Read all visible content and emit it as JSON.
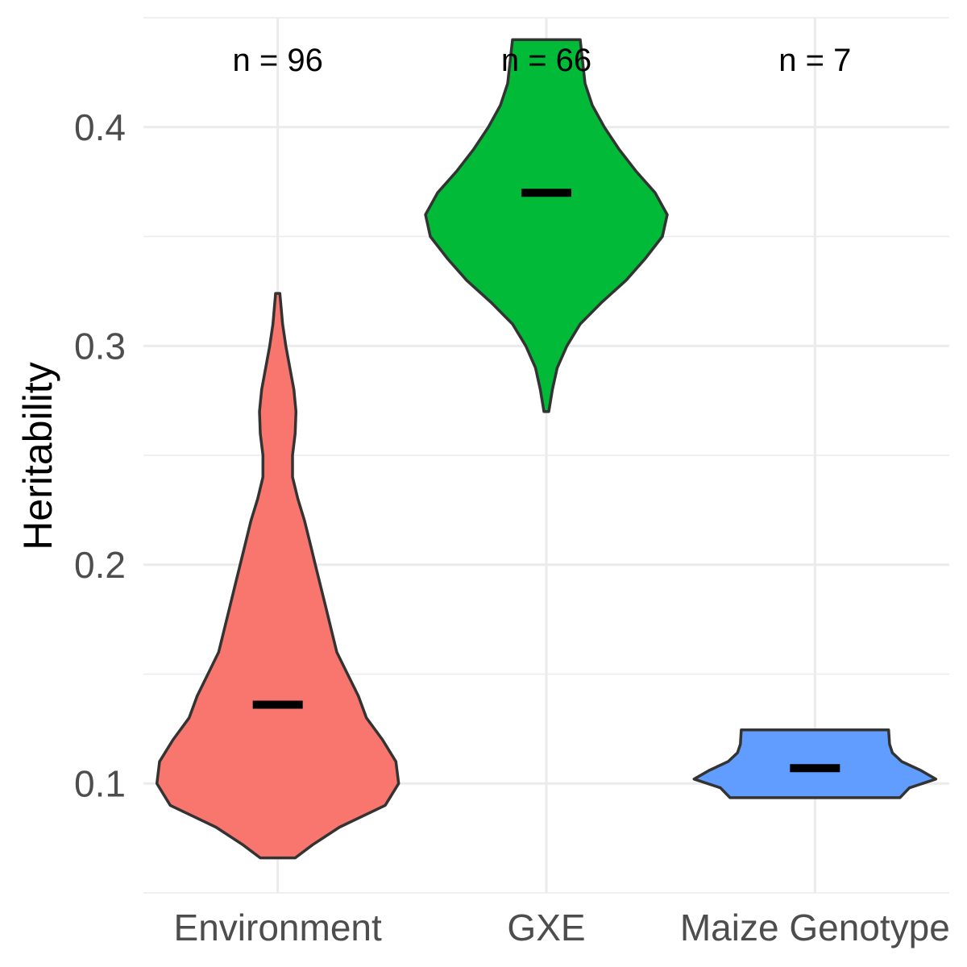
{
  "chart_data": {
    "type": "violin",
    "ylabel": "Heritability",
    "xlabel": "",
    "ylim": [
      0.05,
      0.45
    ],
    "yticks": [
      0.1,
      0.2,
      0.3,
      0.4
    ],
    "ytick_labels": [
      "0.1",
      "0.2",
      "0.3",
      "0.4"
    ],
    "grid": true,
    "categories": [
      "Environment",
      "GXE",
      "Maize Genotype"
    ],
    "series": [
      {
        "category": "Environment",
        "color": "#F8766D",
        "n_label": "n = 96",
        "median": 0.136,
        "density": [
          [
            0.066,
            0.065
          ],
          [
            0.072,
            0.13
          ],
          [
            0.08,
            0.23
          ],
          [
            0.09,
            0.4
          ],
          [
            0.1,
            0.45
          ],
          [
            0.11,
            0.44
          ],
          [
            0.12,
            0.39
          ],
          [
            0.13,
            0.33
          ],
          [
            0.14,
            0.3
          ],
          [
            0.15,
            0.26
          ],
          [
            0.16,
            0.22
          ],
          [
            0.17,
            0.2
          ],
          [
            0.18,
            0.18
          ],
          [
            0.19,
            0.16
          ],
          [
            0.2,
            0.14
          ],
          [
            0.21,
            0.12
          ],
          [
            0.22,
            0.1
          ],
          [
            0.23,
            0.075
          ],
          [
            0.24,
            0.055
          ],
          [
            0.25,
            0.055
          ],
          [
            0.26,
            0.065
          ],
          [
            0.27,
            0.068
          ],
          [
            0.28,
            0.06
          ],
          [
            0.29,
            0.045
          ],
          [
            0.3,
            0.03
          ],
          [
            0.31,
            0.018
          ],
          [
            0.324,
            0.008
          ]
        ]
      },
      {
        "category": "GXE",
        "color": "#00BA38",
        "n_label": "n = 66",
        "median": 0.37,
        "density": [
          [
            0.27,
            0.01
          ],
          [
            0.28,
            0.025
          ],
          [
            0.29,
            0.045
          ],
          [
            0.3,
            0.085
          ],
          [
            0.31,
            0.14
          ],
          [
            0.32,
            0.23
          ],
          [
            0.33,
            0.33
          ],
          [
            0.34,
            0.41
          ],
          [
            0.35,
            0.48
          ],
          [
            0.36,
            0.5
          ],
          [
            0.37,
            0.45
          ],
          [
            0.38,
            0.37
          ],
          [
            0.39,
            0.3
          ],
          [
            0.4,
            0.24
          ],
          [
            0.41,
            0.19
          ],
          [
            0.42,
            0.16
          ],
          [
            0.43,
            0.15
          ],
          [
            0.44,
            0.14
          ]
        ]
      },
      {
        "category": "Maize Genotype",
        "color": "#619CFF",
        "n_label": "n = 7",
        "median": 0.107,
        "density": [
          [
            0.0935,
            0.9
          ],
          [
            0.098,
            1.0
          ],
          [
            0.102,
            1.28
          ],
          [
            0.106,
            1.12
          ],
          [
            0.11,
            0.92
          ],
          [
            0.114,
            0.82
          ],
          [
            0.118,
            0.79
          ],
          [
            0.1245,
            0.78
          ]
        ]
      }
    ]
  }
}
